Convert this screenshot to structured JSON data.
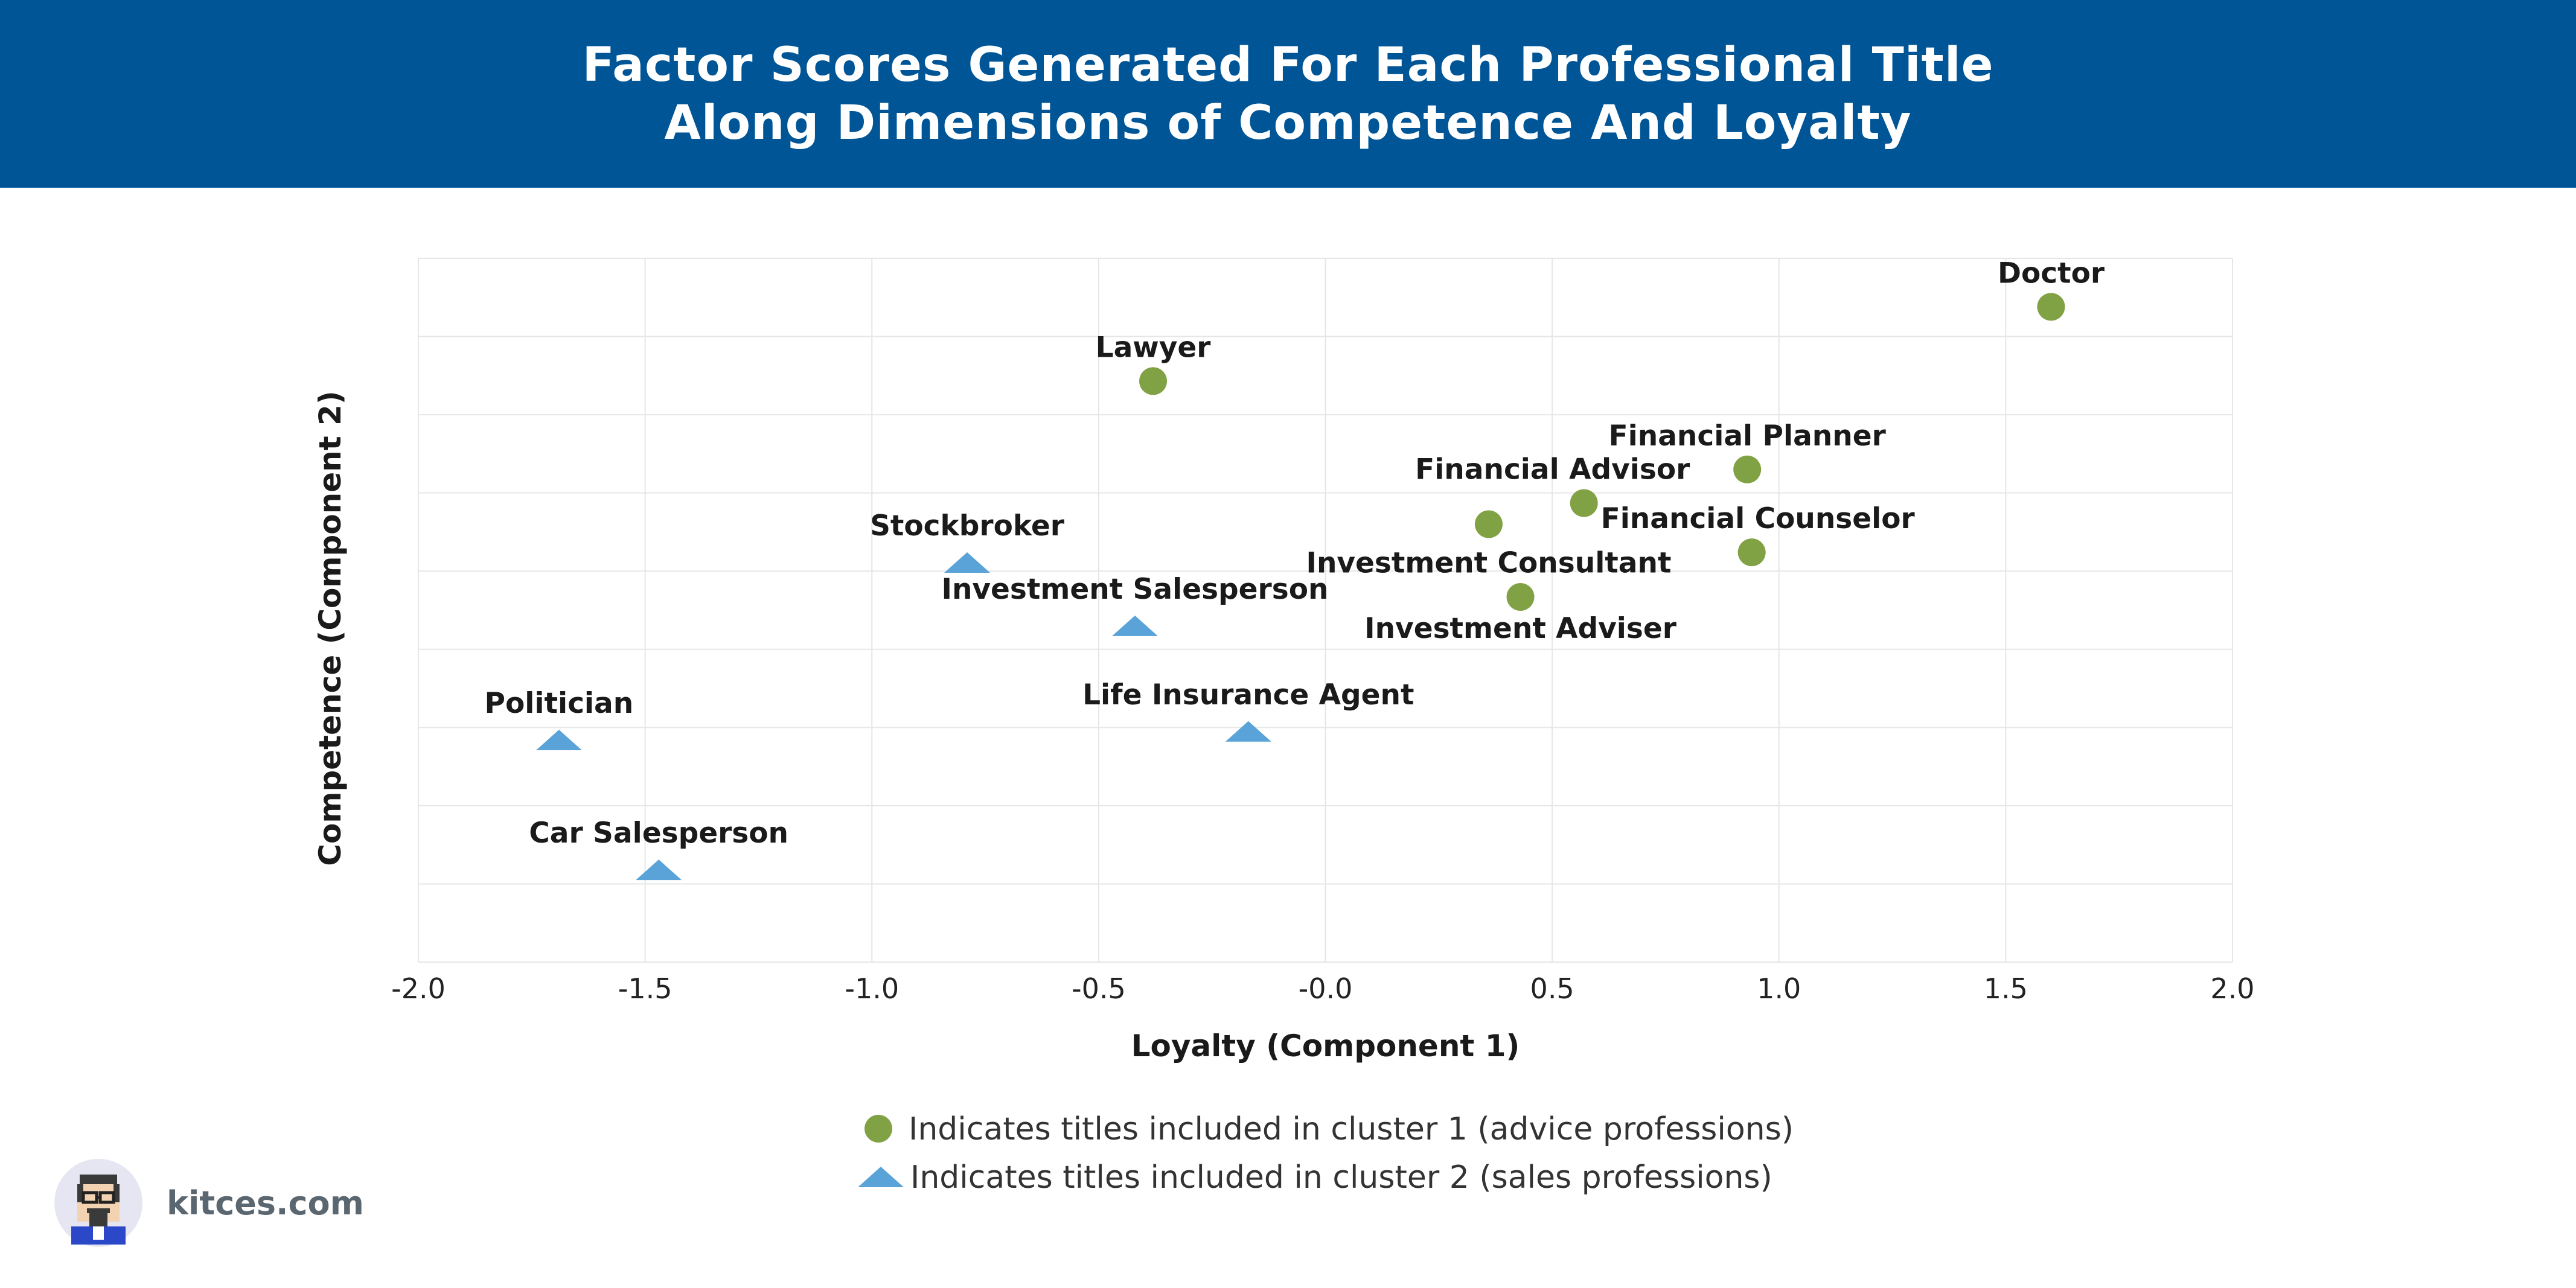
{
  "header": {
    "title_line1": "Factor Scores Generated For Each Professional Title",
    "title_line2": "Along Dimensions of Competence And Loyalty",
    "background": "#005596"
  },
  "chart_data": {
    "type": "scatter",
    "xlabel": "Loyalty (Component 1)",
    "ylabel": "Competence (Component 2)",
    "xlim": [
      -2.0,
      2.0
    ],
    "ylim": [
      0,
      9
    ],
    "x_ticks": [
      "-2.0",
      "-1.5",
      "-1.0",
      "-0.5",
      "-0.0",
      "0.5",
      "1.0",
      "1.5",
      "2.0"
    ],
    "y_tick_labels_shown": false,
    "grid": true,
    "colors": {
      "cluster1": "#80a244",
      "cluster2": "#5aa3d8"
    },
    "series": [
      {
        "name": "Indicates titles included in cluster 1 (advice professions)",
        "marker": "circle",
        "points": [
          {
            "label": "Doctor",
            "x": 1.6,
            "y": 8.38
          },
          {
            "label": "Lawyer",
            "x": -0.38,
            "y": 7.43
          },
          {
            "label": "Financial Planner",
            "x": 0.93,
            "y": 6.3
          },
          {
            "label": "Financial Advisor",
            "x": 0.57,
            "y": 5.87
          },
          {
            "label": "Investment Consultant",
            "x": 0.36,
            "y": 5.6
          },
          {
            "label": "Financial Counselor",
            "x": 0.94,
            "y": 5.24
          },
          {
            "label": "Investment Adviser",
            "x": 0.43,
            "y": 4.67
          }
        ]
      },
      {
        "name": "Indicates titles included in cluster 2 (sales professions)",
        "marker": "triangle",
        "points": [
          {
            "label": "Stockbroker",
            "x": -0.79,
            "y": 5.11
          },
          {
            "label": "Investment Salesperson",
            "x": -0.42,
            "y": 4.3
          },
          {
            "label": "Life Insurance Agent",
            "x": -0.17,
            "y": 2.95
          },
          {
            "label": "Politician",
            "x": -1.69,
            "y": 2.84
          },
          {
            "label": "Car Salesperson",
            "x": -1.47,
            "y": 1.18
          }
        ]
      }
    ]
  },
  "legend": {
    "item1": "Indicates titles included in cluster 1 (advice professions)",
    "item2": "Indicates titles included in cluster 2 (sales professions)"
  },
  "brand": {
    "text": "kitces.com"
  }
}
